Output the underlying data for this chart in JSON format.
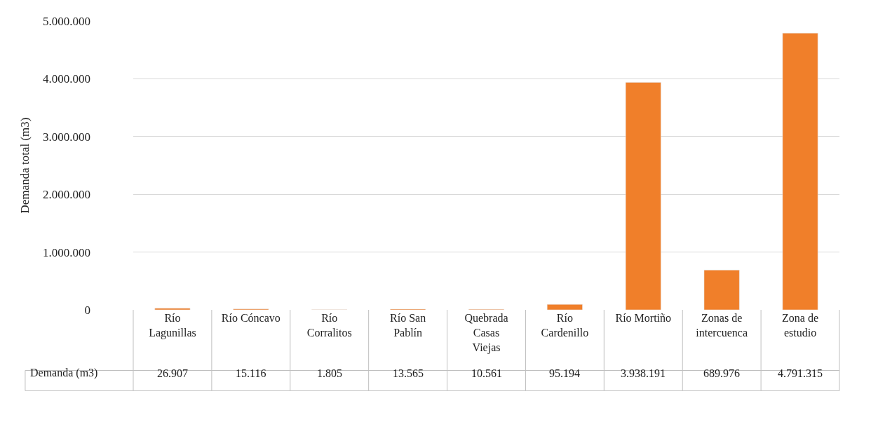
{
  "chart_data": {
    "type": "bar",
    "ylabel": "Demanda total (m3)",
    "categories": [
      "Río Lagunillas",
      "Río Cóncavo",
      "Río Corralitos",
      "Río San Pablín",
      "Quebrada Casas Viejas",
      "Río Cardenillo",
      "Río Mortiño",
      "Zonas de intercuenca",
      "Zona de estudio"
    ],
    "series": [
      {
        "name": "Demanda (m3)",
        "color": "#f07f2a",
        "values": [
          26907,
          15116,
          1805,
          13565,
          10561,
          95194,
          3938191,
          689976,
          4791315
        ],
        "value_labels": [
          "26.907",
          "15.116",
          "1.805",
          "13.565",
          "10.561",
          "95.194",
          "3.938.191",
          "689.976",
          "4.791.315"
        ]
      }
    ],
    "ylim": [
      0,
      5000000
    ],
    "yticks": [
      {
        "value": 0,
        "label": "0"
      },
      {
        "value": 1000000,
        "label": "1.000.000"
      },
      {
        "value": 2000000,
        "label": "2.000.000"
      },
      {
        "value": 3000000,
        "label": "3.000.000"
      },
      {
        "value": 4000000,
        "label": "4.000.000"
      },
      {
        "value": 5000000,
        "label": "5.000.000"
      }
    ],
    "grid": "y",
    "legend": false
  }
}
